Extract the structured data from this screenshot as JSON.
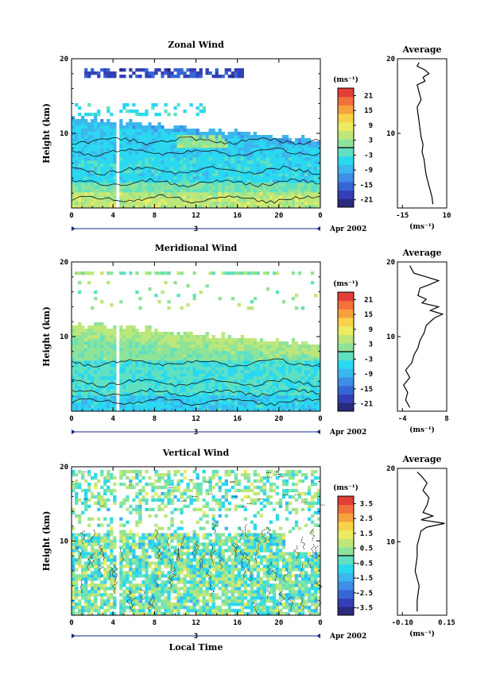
{
  "chart_data": [
    {
      "type": "heatmap",
      "title": "Zonal Wind",
      "ylabel": "Height (km)",
      "xlim": [
        0,
        24
      ],
      "ylim": [
        0,
        20
      ],
      "x_ticks": [
        "0",
        "4",
        "8",
        "12",
        "16",
        "20",
        "0"
      ],
      "y_ticks": [
        "10",
        "20"
      ],
      "date_label": "3",
      "date_suffix": "Apr 2002",
      "colorbar": {
        "unit": "(ms⁻¹)",
        "ticks": [
          "21",
          "15",
          "9",
          "3",
          "-3",
          "-9",
          "-15",
          "-21"
        ],
        "range": [
          -24,
          24
        ]
      },
      "pattern": "zonal",
      "average": {
        "title": "Average",
        "xlabel": "(ms⁻¹)",
        "xlim": [
          -15,
          10
        ],
        "x_ticks": [
          "-15",
          "10"
        ],
        "y_ticks": [
          "10",
          "20"
        ],
        "profile": [
          [
            0.5,
            3
          ],
          [
            1.5,
            2.5
          ],
          [
            2.5,
            1.5
          ],
          [
            3.5,
            0.5
          ],
          [
            4.5,
            -0.5
          ],
          [
            5.5,
            -1
          ],
          [
            6.5,
            -1.5
          ],
          [
            7.5,
            -2.5
          ],
          [
            8.5,
            -2
          ],
          [
            9.5,
            -3
          ],
          [
            10.5,
            -3.5
          ],
          [
            11.5,
            -4
          ],
          [
            12.5,
            -4.5
          ],
          [
            13.5,
            -5
          ],
          [
            14.5,
            -3
          ],
          [
            15.5,
            -4
          ],
          [
            16.5,
            -5
          ],
          [
            17,
            -1
          ],
          [
            17.5,
            -2
          ],
          [
            18,
            1
          ],
          [
            18.5,
            -1
          ],
          [
            19,
            -5
          ],
          [
            19.5,
            -4
          ]
        ]
      }
    },
    {
      "type": "heatmap",
      "title": "Meridional Wind",
      "ylabel": "Height (km)",
      "xlim": [
        0,
        24
      ],
      "ylim": [
        0,
        20
      ],
      "x_ticks": [
        "0",
        "4",
        "8",
        "12",
        "16",
        "20",
        "0"
      ],
      "y_ticks": [
        "10",
        "20"
      ],
      "date_label": "3",
      "date_suffix": "Apr 2002",
      "colorbar": {
        "unit": "(ms⁻¹)",
        "ticks": [
          "21",
          "15",
          "9",
          "3",
          "-3",
          "-9",
          "-15",
          "-21"
        ],
        "range": [
          -24,
          24
        ]
      },
      "pattern": "meridional",
      "average": {
        "title": "Average",
        "xlabel": "(ms⁻¹)",
        "xlim": [
          -4,
          8
        ],
        "x_ticks": [
          "-4",
          "8"
        ],
        "y_ticks": [
          "10",
          "20"
        ],
        "profile": [
          [
            0.5,
            -1
          ],
          [
            1.5,
            -2
          ],
          [
            2.5,
            -1.5
          ],
          [
            3.5,
            -2.5
          ],
          [
            4.5,
            -1
          ],
          [
            5.5,
            -2
          ],
          [
            6.5,
            -0.5
          ],
          [
            7.5,
            0
          ],
          [
            8.5,
            1
          ],
          [
            9.5,
            1.5
          ],
          [
            10.5,
            2.5
          ],
          [
            11.5,
            3
          ],
          [
            12.5,
            5
          ],
          [
            13,
            7
          ],
          [
            13.5,
            4
          ],
          [
            14,
            6
          ],
          [
            14.5,
            2
          ],
          [
            15,
            3
          ],
          [
            15.5,
            1
          ],
          [
            16.5,
            1.5
          ],
          [
            17,
            4
          ],
          [
            17.5,
            6
          ],
          [
            18,
            3
          ],
          [
            18.5,
            0
          ],
          [
            19.5,
            -1
          ]
        ]
      }
    },
    {
      "type": "heatmap",
      "title": "Vertical Wind",
      "ylabel": "Height (km)",
      "xlabel": "Local Time",
      "xlim": [
        0,
        24
      ],
      "ylim": [
        0,
        20
      ],
      "x_ticks": [
        "0",
        "4",
        "8",
        "12",
        "16",
        "20",
        "0"
      ],
      "y_ticks": [
        "10",
        "20"
      ],
      "date_label": "3",
      "date_suffix": "Apr 2002",
      "colorbar": {
        "unit": "(ms⁻¹)",
        "ticks": [
          "3.5",
          "2.5",
          "1.5",
          "0.5",
          "-0.5",
          "-1.5",
          "-2.5",
          "-3.5"
        ],
        "range": [
          -4,
          4
        ]
      },
      "pattern": "vertical",
      "average": {
        "title": "Average",
        "xlabel": "(ms⁻¹)",
        "xlim": [
          -0.1,
          0.15
        ],
        "x_ticks": [
          "-0.10",
          "0.15"
        ],
        "y_ticks": [
          "10",
          "20"
        ],
        "profile": [
          [
            0.5,
            0.0
          ],
          [
            2,
            0.0
          ],
          [
            4,
            0.01
          ],
          [
            6,
            -0.01
          ],
          [
            8,
            0.0
          ],
          [
            9.5,
            0.0
          ],
          [
            10.5,
            0.01
          ],
          [
            11.5,
            0.02
          ],
          [
            12,
            0.05
          ],
          [
            12.5,
            0.14
          ],
          [
            13,
            0.02
          ],
          [
            13.5,
            0.08
          ],
          [
            14,
            0.03
          ],
          [
            15,
            0.05
          ],
          [
            16,
            0.06
          ],
          [
            17,
            0.03
          ],
          [
            18,
            0.05
          ],
          [
            19,
            0.02
          ],
          [
            19.5,
            0.0
          ]
        ]
      }
    }
  ]
}
